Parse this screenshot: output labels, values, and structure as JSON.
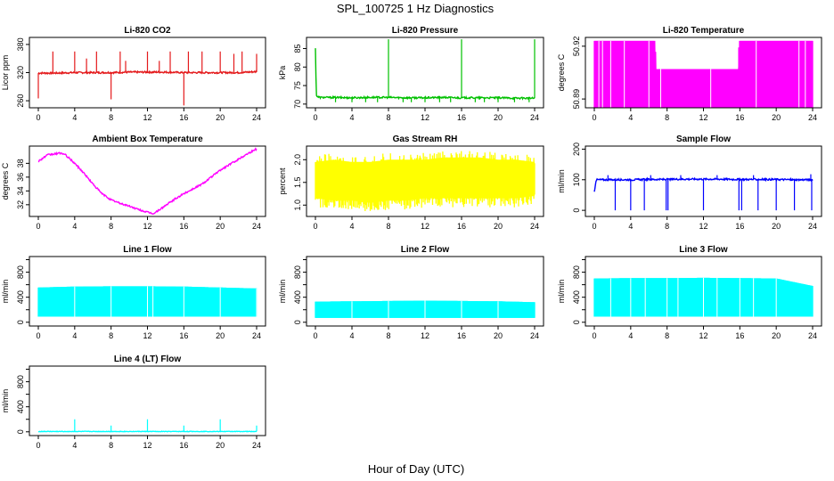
{
  "figure": {
    "title": "SPL_100725  1 Hz Diagnostics",
    "xlabel": "Hour of Day (UTC)"
  },
  "chart_data": [
    {
      "id": "co2",
      "type": "line",
      "title": "Li-820 CO2",
      "ylabel": "Licor ppm",
      "color": "#e41a1c",
      "xlim": [
        0,
        24
      ],
      "ylim": [
        245,
        395
      ],
      "xticks": [
        0,
        4,
        8,
        12,
        16,
        20,
        24
      ],
      "yticks": [
        260,
        320,
        380
      ],
      "yticks_rotated": true,
      "x": [
        0.0,
        2.0,
        4.0,
        6.0,
        8.0,
        10.0,
        12.0,
        14.0,
        16.0,
        18.0,
        20.0,
        22.0,
        24.0
      ],
      "y": [
        319,
        319,
        320,
        320,
        320,
        321,
        321,
        321,
        320,
        320,
        320,
        320,
        322
      ],
      "spikes": [
        {
          "x": 0.0,
          "y": 265
        },
        {
          "x": 1.6,
          "y": 365
        },
        {
          "x": 4.0,
          "y": 365
        },
        {
          "x": 5.3,
          "y": 350
        },
        {
          "x": 6.4,
          "y": 365
        },
        {
          "x": 8.0,
          "y": 263
        },
        {
          "x": 9.0,
          "y": 365
        },
        {
          "x": 9.6,
          "y": 345
        },
        {
          "x": 12.0,
          "y": 365
        },
        {
          "x": 13.3,
          "y": 345
        },
        {
          "x": 14.5,
          "y": 365
        },
        {
          "x": 16.0,
          "y": 250
        },
        {
          "x": 16.5,
          "y": 365
        },
        {
          "x": 18.0,
          "y": 365
        },
        {
          "x": 20.0,
          "y": 365
        },
        {
          "x": 21.5,
          "y": 360
        },
        {
          "x": 22.4,
          "y": 365
        },
        {
          "x": 24.0,
          "y": 360
        }
      ]
    },
    {
      "id": "pressure",
      "type": "line",
      "title": "Li-820 Pressure",
      "ylabel": "kPa",
      "color": "#00c000",
      "xlim": [
        0,
        24
      ],
      "ylim": [
        69,
        88
      ],
      "xticks": [
        0,
        4,
        8,
        12,
        16,
        20,
        24
      ],
      "yticks": [
        70,
        75,
        80,
        85
      ],
      "yticks_rotated": true,
      "x": [
        0.0,
        0.1,
        0.2,
        0.5,
        2.0,
        4.0,
        6.0,
        8.0,
        10.0,
        12.0,
        14.0,
        16.0,
        18.0,
        20.0,
        22.0,
        24.0
      ],
      "y": [
        85,
        72.5,
        72,
        71.8,
        71.8,
        71.7,
        71.8,
        71.8,
        71.7,
        71.7,
        71.8,
        71.7,
        71.7,
        71.7,
        71.6,
        71.6
      ],
      "spikes": [
        {
          "x": 8.0,
          "y": 87.5
        },
        {
          "x": 16.0,
          "y": 87.5
        },
        {
          "x": 24.0,
          "y": 87.5
        },
        {
          "x": 2.2,
          "y": 70.5
        },
        {
          "x": 4.0,
          "y": 70.5
        },
        {
          "x": 5.5,
          "y": 70.5
        },
        {
          "x": 6.8,
          "y": 70.5
        },
        {
          "x": 9.6,
          "y": 70.5
        },
        {
          "x": 10.5,
          "y": 70.5
        },
        {
          "x": 12.0,
          "y": 70.5
        },
        {
          "x": 13.6,
          "y": 70.5
        },
        {
          "x": 14.8,
          "y": 70.5
        },
        {
          "x": 17.5,
          "y": 70.5
        },
        {
          "x": 18.5,
          "y": 70.5
        },
        {
          "x": 20.0,
          "y": 70.5
        },
        {
          "x": 21.8,
          "y": 70.5
        },
        {
          "x": 23.4,
          "y": 70.5
        }
      ]
    },
    {
      "id": "licor_temp",
      "type": "area",
      "title": "Li-820 Temperature",
      "ylabel": "degrees C",
      "color": "#ff00ff",
      "xlim": [
        0,
        24
      ],
      "ylim": [
        50.885,
        50.925
      ],
      "xticks": [
        0,
        4,
        8,
        12,
        16,
        20,
        24
      ],
      "yticks": [
        50.89,
        50.92
      ],
      "yticks_rotated": true,
      "x": [
        0.0,
        6.7,
        6.8,
        15.8,
        15.9,
        24.0
      ],
      "y_low": [
        50.885,
        50.885,
        50.885,
        50.885,
        50.885,
        50.885
      ],
      "y_high": [
        50.923,
        50.923,
        50.907,
        50.907,
        50.923,
        50.923
      ],
      "white_lines": [
        0.5,
        0.9,
        1.8,
        3.3,
        6.0,
        7.3,
        12.8,
        17.8,
        22.5,
        23.2
      ]
    },
    {
      "id": "ambient_temp",
      "type": "line",
      "title": "Ambient Box Temperature",
      "ylabel": "degrees C",
      "color": "#ff00ff",
      "xlim": [
        0,
        24
      ],
      "ylim": [
        30.3,
        40.5
      ],
      "xticks": [
        0,
        4,
        8,
        12,
        16,
        20,
        24
      ],
      "yticks": [
        32,
        34,
        36,
        38
      ],
      "yticks_rotated": true,
      "x": [
        0,
        1,
        2,
        2.5,
        3,
        4,
        5,
        6,
        7,
        8,
        9,
        10,
        11,
        12,
        12.7,
        13,
        14,
        15,
        16,
        17,
        18,
        19,
        20,
        21,
        22,
        23,
        24
      ],
      "y": [
        38.3,
        39.2,
        39.4,
        39.5,
        39.2,
        38.0,
        36.6,
        35.0,
        33.6,
        32.7,
        32.2,
        31.8,
        31.3,
        30.9,
        30.7,
        31.0,
        31.9,
        32.8,
        33.6,
        34.3,
        35.0,
        36.0,
        37.0,
        37.8,
        38.6,
        39.4,
        40.1
      ]
    },
    {
      "id": "rh",
      "type": "area",
      "title": "Gas Stream RH",
      "ylabel": "percent",
      "color": "#ffff00",
      "xlim": [
        0,
        24
      ],
      "ylim": [
        0.75,
        2.3
      ],
      "xticks": [
        0,
        4,
        8,
        12,
        16,
        20,
        24
      ],
      "yticks": [
        1.0,
        1.5,
        2.0
      ],
      "yticks_rotated": true,
      "x": [
        0,
        2,
        4,
        6,
        8,
        10,
        12,
        14,
        16,
        18,
        20,
        22,
        24
      ],
      "y_low": [
        0.95,
        0.9,
        0.9,
        0.85,
        0.9,
        0.9,
        0.95,
        0.95,
        0.95,
        0.95,
        0.95,
        0.95,
        1.0
      ],
      "y_high": [
        2.1,
        2.15,
        2.1,
        2.1,
        2.15,
        2.15,
        2.15,
        2.2,
        2.2,
        2.2,
        2.15,
        2.15,
        2.1
      ]
    },
    {
      "id": "sample_flow",
      "type": "line",
      "title": "Sample Flow",
      "ylabel": "ml/min",
      "color": "#0000ff",
      "xlim": [
        0,
        24
      ],
      "ylim": [
        -20,
        210
      ],
      "xticks": [
        0,
        4,
        8,
        12,
        16,
        20,
        24
      ],
      "yticks": [
        0,
        100,
        200
      ],
      "yticks_rotated": true,
      "x": [
        0,
        0.1,
        0.2,
        2,
        4,
        6,
        8,
        10,
        12,
        14,
        16,
        18,
        20,
        22,
        24
      ],
      "y": [
        60,
        80,
        100,
        100,
        100,
        101,
        101,
        102,
        102,
        102,
        101,
        101,
        101,
        100,
        100
      ],
      "spikes": [
        {
          "x": 2.3,
          "y": 0
        },
        {
          "x": 4.0,
          "y": 0
        },
        {
          "x": 5.5,
          "y": 0
        },
        {
          "x": 7.9,
          "y": 0
        },
        {
          "x": 8.1,
          "y": 0
        },
        {
          "x": 12.0,
          "y": 0
        },
        {
          "x": 15.9,
          "y": 0
        },
        {
          "x": 16.2,
          "y": 0
        },
        {
          "x": 18.0,
          "y": 0
        },
        {
          "x": 20.0,
          "y": 0
        },
        {
          "x": 22.0,
          "y": 0
        },
        {
          "x": 23.9,
          "y": 0
        },
        {
          "x": 1.5,
          "y": 115
        },
        {
          "x": 6.2,
          "y": 115
        },
        {
          "x": 9.5,
          "y": 115
        },
        {
          "x": 13.5,
          "y": 115
        },
        {
          "x": 17.5,
          "y": 115
        },
        {
          "x": 23.8,
          "y": 118
        }
      ]
    },
    {
      "id": "line1",
      "type": "area",
      "title": "Line 1 Flow",
      "ylabel": "ml/min",
      "color": "#00ffff",
      "xlim": [
        0,
        24
      ],
      "ylim": [
        -60,
        1050
      ],
      "xticks": [
        0,
        4,
        8,
        12,
        16,
        20,
        24
      ],
      "yticks": [
        0,
        400,
        800
      ],
      "yticks_rotated": true,
      "minor_yticks": [
        200,
        600,
        1000
      ],
      "x": [
        0,
        4,
        8,
        12,
        16,
        20,
        24
      ],
      "y_low": [
        90,
        90,
        90,
        90,
        90,
        90,
        90
      ],
      "y_high": [
        555,
        570,
        575,
        575,
        570,
        555,
        540
      ],
      "white_lines": [
        4.0,
        8.0,
        12.0,
        12.6,
        16.0,
        20.0,
        24.0
      ]
    },
    {
      "id": "line2",
      "type": "area",
      "title": "Line 2 Flow",
      "ylabel": "ml/min",
      "color": "#00ffff",
      "xlim": [
        0,
        24
      ],
      "ylim": [
        -60,
        1050
      ],
      "xticks": [
        0,
        4,
        8,
        12,
        16,
        20,
        24
      ],
      "yticks": [
        0,
        400,
        800
      ],
      "yticks_rotated": true,
      "minor_yticks": [
        200,
        600,
        1000
      ],
      "x": [
        0,
        4,
        8,
        12,
        16,
        20,
        24
      ],
      "y_low": [
        70,
        70,
        70,
        70,
        70,
        70,
        70
      ],
      "y_high": [
        330,
        335,
        340,
        345,
        340,
        335,
        320
      ],
      "white_lines": [
        4.0,
        8.0,
        12.0,
        16.0,
        20.0
      ]
    },
    {
      "id": "line3",
      "type": "area",
      "title": "Line 3 Flow",
      "ylabel": "ml/min",
      "color": "#00ffff",
      "xlim": [
        0,
        24
      ],
      "ylim": [
        -60,
        1050
      ],
      "xticks": [
        0,
        4,
        8,
        12,
        16,
        20,
        24
      ],
      "yticks": [
        0,
        400,
        800
      ],
      "yticks_rotated": true,
      "minor_yticks": [
        200,
        600,
        1000
      ],
      "x": [
        0,
        4,
        8,
        12,
        16,
        20,
        24
      ],
      "y_low": [
        90,
        90,
        90,
        90,
        90,
        90,
        90
      ],
      "y_high": [
        700,
        705,
        705,
        710,
        705,
        700,
        580
      ],
      "white_lines": [
        1.8,
        4.0,
        5.6,
        8.0,
        9.2,
        12.0,
        13.5,
        16.0,
        17.5,
        20.0
      ]
    },
    {
      "id": "line4",
      "type": "line",
      "title": "Line 4 (LT) Flow",
      "ylabel": "ml/min",
      "color": "#00ffff",
      "xlim": [
        0,
        24
      ],
      "ylim": [
        -60,
        1050
      ],
      "xticks": [
        0,
        4,
        8,
        12,
        16,
        20,
        24
      ],
      "yticks": [
        0,
        400,
        800
      ],
      "yticks_rotated": true,
      "minor_yticks": [
        200,
        600,
        1000
      ],
      "x": [
        0,
        24
      ],
      "y": [
        5,
        5
      ],
      "spikes": [
        {
          "x": 4.0,
          "y": 200
        },
        {
          "x": 8.0,
          "y": 100
        },
        {
          "x": 12.0,
          "y": 200
        },
        {
          "x": 16.0,
          "y": 100
        },
        {
          "x": 20.0,
          "y": 200
        },
        {
          "x": 24.0,
          "y": 100
        }
      ]
    }
  ]
}
